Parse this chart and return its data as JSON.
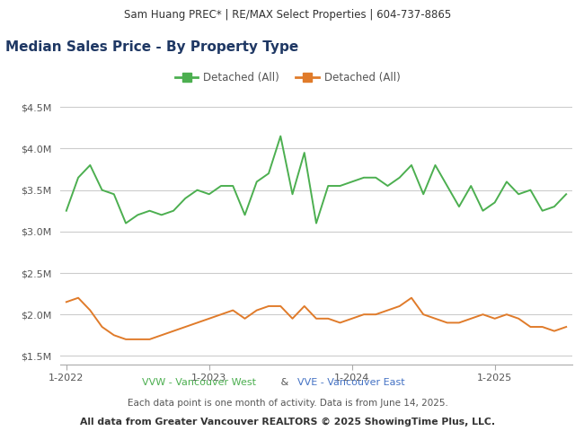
{
  "header_text": "Sam Huang PREC* | RE/MAX Select Properties | 604-737-8865",
  "title": "Median Sales Price - By Property Type",
  "title_color": "#1f3864",
  "legend_labels": [
    "Detached (All)",
    "Detached (All)"
  ],
  "legend_colors": [
    "#4caf50",
    "#e07b2a"
  ],
  "footer_line1_parts": [
    {
      "text": "VVW - Vancouver West",
      "color": "#4caf50"
    },
    {
      "text": " & ",
      "color": "#555555"
    },
    {
      "text": "VVE - Vancouver East",
      "color": "#4472c4"
    }
  ],
  "footer_line2": "Each data point is one month of activity. Data is from June 14, 2025.",
  "footer_line3": "All data from Greater Vancouver REALTORS © 2025 ShowingTime Plus, LLC.",
  "x_tick_labels": [
    "1-2022",
    "1-2023",
    "1-2024",
    "1-2025"
  ],
  "ytick_labels": [
    "$1.5M",
    "$2.0M",
    "$2.5M",
    "$3.0M",
    "$3.5M",
    "$4.0M",
    "$4.5M"
  ],
  "ytick_values": [
    1500000,
    2000000,
    2500000,
    3000000,
    3500000,
    4000000,
    4500000
  ],
  "ylim": [
    1400000,
    4700000
  ],
  "green_line_color": "#4caf50",
  "orange_line_color": "#e07b2a",
  "background_color": "#ffffff",
  "header_bg_color": "#e8e8e8",
  "grid_color": "#cccccc",
  "green_data": [
    3250000,
    3650000,
    3800000,
    3500000,
    3450000,
    3100000,
    3200000,
    3250000,
    3200000,
    3250000,
    3400000,
    3500000,
    3450000,
    3550000,
    3550000,
    3200000,
    3600000,
    3700000,
    4150000,
    3450000,
    3950000,
    3100000,
    3550000,
    3550000,
    3600000,
    3650000,
    3650000,
    3550000,
    3650000,
    3800000,
    3450000,
    3800000,
    3550000,
    3300000,
    3550000,
    3250000,
    3350000,
    3600000,
    3450000,
    3500000,
    3250000,
    3300000,
    3450000
  ],
  "orange_data": [
    2150000,
    2200000,
    2050000,
    1850000,
    1750000,
    1700000,
    1700000,
    1700000,
    1750000,
    1800000,
    1850000,
    1900000,
    1950000,
    2000000,
    2050000,
    1950000,
    2050000,
    2100000,
    2100000,
    1950000,
    2100000,
    1950000,
    1950000,
    1900000,
    1950000,
    2000000,
    2000000,
    2050000,
    2100000,
    2200000,
    2000000,
    1950000,
    1900000,
    1900000,
    1950000,
    2000000,
    1950000,
    2000000,
    1950000,
    1850000,
    1850000,
    1800000,
    1850000
  ]
}
